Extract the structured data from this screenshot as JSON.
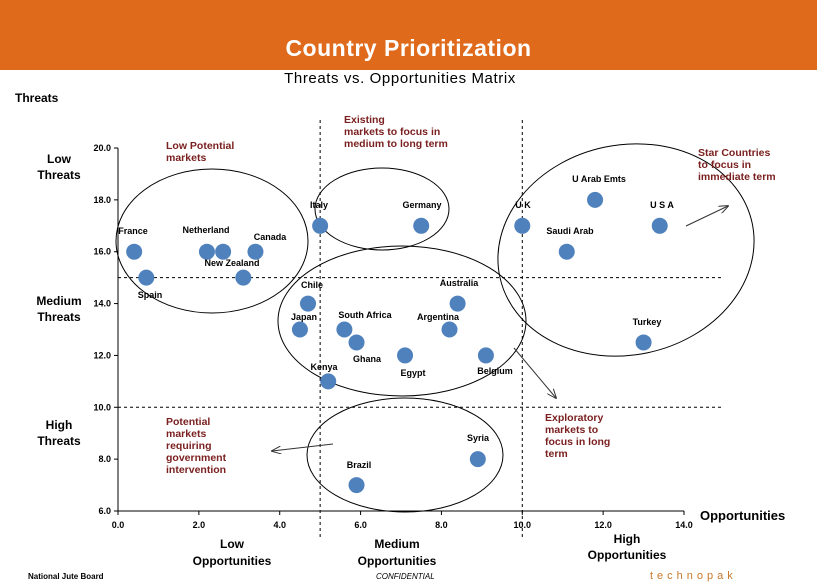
{
  "header": {
    "title": "Country Prioritization",
    "subtitle": "Threats vs. Opportunities Matrix"
  },
  "chart_data": {
    "type": "scatter",
    "title": "Threats vs. Opportunities Matrix",
    "xlabel": "Opportunities",
    "ylabel": "Threats",
    "xlim": [
      0,
      14
    ],
    "ylim": [
      6,
      20
    ],
    "xticks": [
      "0.0",
      "2.0",
      "4.0",
      "6.0",
      "8.0",
      "10.0",
      "12.0",
      "14.0"
    ],
    "yticks": [
      "6.0",
      "8.0",
      "10.0",
      "12.0",
      "14.0",
      "16.0",
      "18.0",
      "20.0"
    ],
    "grid": false,
    "marker_color": "#4F81BD",
    "points": [
      {
        "label": "France",
        "x": 0.4,
        "y": 16.0
      },
      {
        "label": "Spain",
        "x": 0.7,
        "y": 15.0
      },
      {
        "label": "Netherland",
        "x": 2.2,
        "y": 16.0
      },
      {
        "label": "Netherland",
        "x": 2.6,
        "y": 16.0
      },
      {
        "label": "Canada",
        "x": 3.4,
        "y": 16.0
      },
      {
        "label": "New Zealand",
        "x": 3.1,
        "y": 15.0
      },
      {
        "label": "Italy",
        "x": 5.0,
        "y": 17.0
      },
      {
        "label": "Germany",
        "x": 7.5,
        "y": 17.0
      },
      {
        "label": "U K",
        "x": 10.0,
        "y": 17.0
      },
      {
        "label": "U Arab Emts",
        "x": 11.8,
        "y": 18.0
      },
      {
        "label": "U S A",
        "x": 13.4,
        "y": 17.0
      },
      {
        "label": "Saudi Arab",
        "x": 11.1,
        "y": 16.0
      },
      {
        "label": "Chile",
        "x": 4.7,
        "y": 14.0
      },
      {
        "label": "Japan",
        "x": 4.5,
        "y": 13.0
      },
      {
        "label": "South Africa",
        "x": 5.6,
        "y": 13.0
      },
      {
        "label": "Ghana",
        "x": 5.9,
        "y": 12.5
      },
      {
        "label": "Kenya",
        "x": 5.2,
        "y": 11.0
      },
      {
        "label": "Egypt",
        "x": 7.1,
        "y": 12.0
      },
      {
        "label": "Argentina",
        "x": 8.2,
        "y": 13.0
      },
      {
        "label": "Australia",
        "x": 8.4,
        "y": 14.0
      },
      {
        "label": "Belgium",
        "x": 9.1,
        "y": 12.0
      },
      {
        "label": "Turkey",
        "x": 13.0,
        "y": 12.5
      },
      {
        "label": "Syria",
        "x": 8.9,
        "y": 8.0
      },
      {
        "label": "Brazil",
        "x": 5.9,
        "y": 7.0
      }
    ],
    "divider_x": [
      5.0,
      10.0
    ],
    "divider_y": [
      10.0,
      15.0
    ],
    "y_axis_title": "Threats",
    "x_axis_title": "Opportunities",
    "y_zones": [
      {
        "line1": "Low",
        "line2": "Threats"
      },
      {
        "line1": "Medium",
        "line2": "Threats"
      },
      {
        "line1": "High",
        "line2": "Threats"
      }
    ],
    "x_zones": [
      {
        "line1": "Low",
        "line2": "Opportunities"
      },
      {
        "line1": "Medium",
        "line2": "Opportunities"
      },
      {
        "line1": "High",
        "line2": "Opportunities"
      }
    ],
    "annotations": [
      {
        "lines": [
          "Low Potential",
          "markets"
        ]
      },
      {
        "lines": [
          "Existing",
          "markets to focus in",
          "medium to long  term"
        ]
      },
      {
        "lines": [
          "Star Countries",
          "to focus in",
          "immediate term"
        ]
      },
      {
        "lines": [
          "Potential",
          "markets",
          "requiring",
          "government",
          "intervention"
        ]
      },
      {
        "lines": [
          "Exploratory",
          "markets to",
          "focus in long",
          "term"
        ]
      }
    ],
    "annotation_color": "#7B2020"
  },
  "footer": {
    "left": "National Jute Board",
    "center": "CONFIDENTIAL",
    "right": "technopak"
  }
}
